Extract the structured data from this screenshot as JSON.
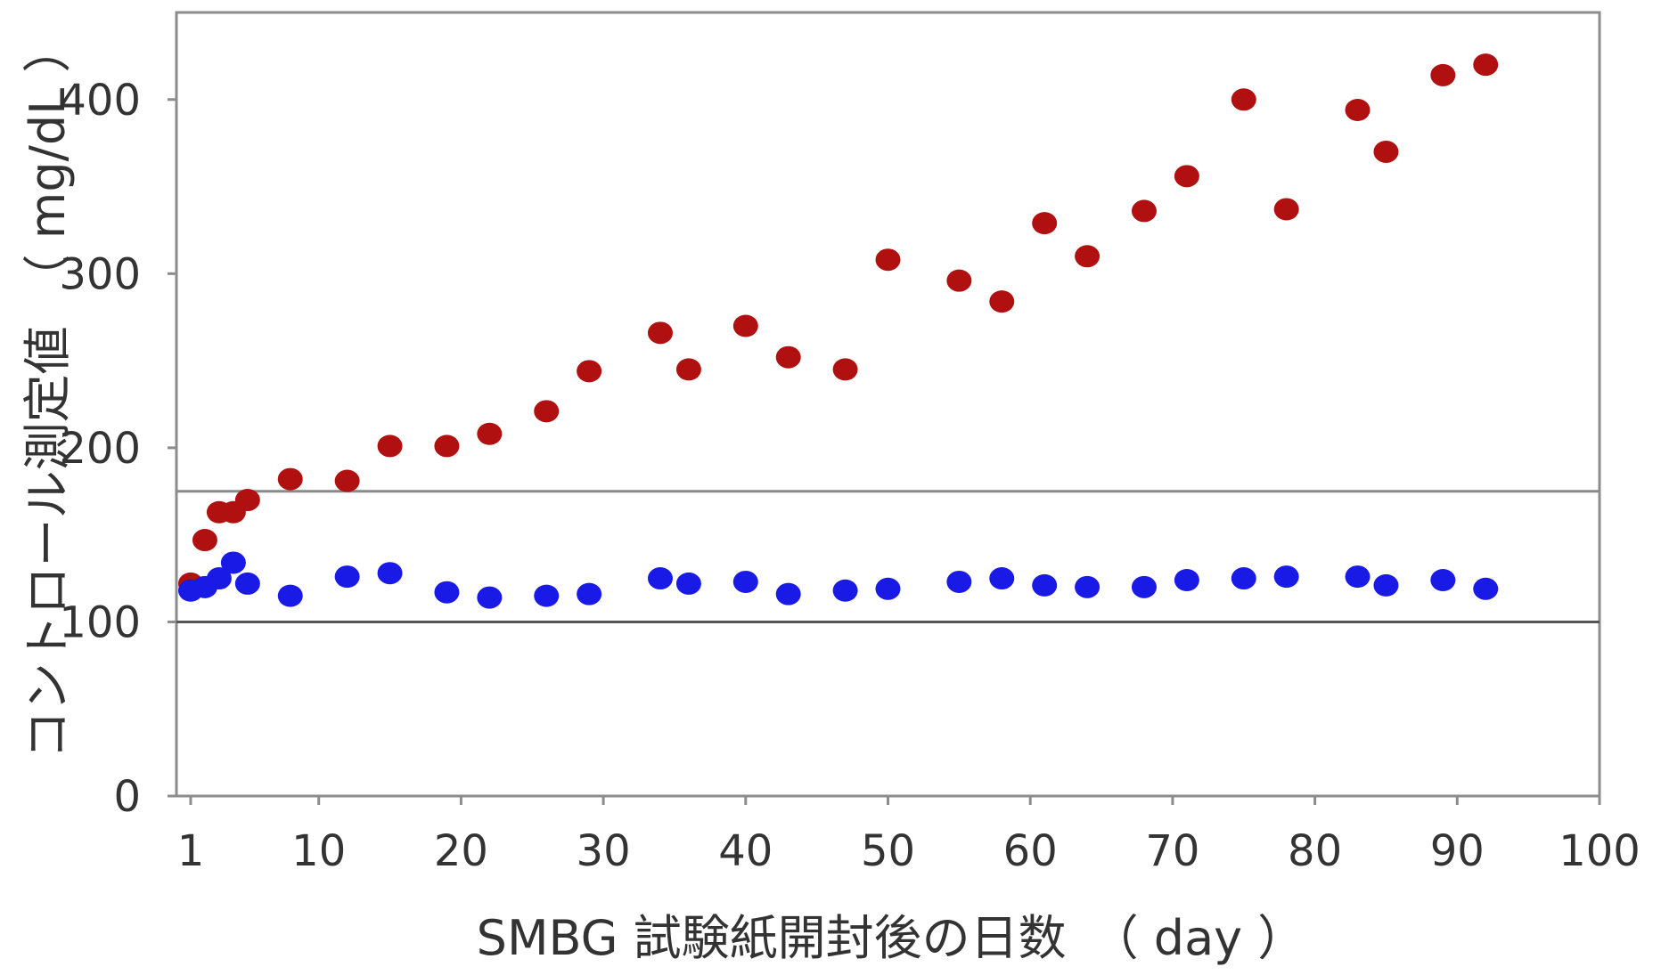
{
  "chart_data": {
    "type": "scatter",
    "xlabel": "SMBG 試験紙開封後の日数　（ day ）",
    "ylabel": "コントロール測定値　（ mg/dL ）",
    "xlim": [
      0,
      100
    ],
    "ylim": [
      0,
      450
    ],
    "x_ticks": [
      1,
      10,
      20,
      30,
      40,
      50,
      60,
      70,
      80,
      90,
      100
    ],
    "y_ticks": [
      0,
      100,
      200,
      300,
      400
    ],
    "reference_lines": [
      100,
      175
    ],
    "grid": false,
    "series": [
      {
        "color": "#b01010",
        "points": [
          [
            1,
            122
          ],
          [
            2,
            147
          ],
          [
            3,
            163
          ],
          [
            4,
            163
          ],
          [
            5,
            170
          ],
          [
            8,
            182
          ],
          [
            12,
            181
          ],
          [
            15,
            201
          ],
          [
            19,
            201
          ],
          [
            22,
            208
          ],
          [
            26,
            221
          ],
          [
            29,
            244
          ],
          [
            34,
            266
          ],
          [
            36,
            245
          ],
          [
            40,
            270
          ],
          [
            43,
            252
          ],
          [
            47,
            245
          ],
          [
            50,
            308
          ],
          [
            55,
            296
          ],
          [
            58,
            284
          ],
          [
            61,
            329
          ],
          [
            64,
            310
          ],
          [
            68,
            336
          ],
          [
            71,
            356
          ],
          [
            75,
            400
          ],
          [
            78,
            337
          ],
          [
            83,
            394
          ],
          [
            85,
            370
          ],
          [
            89,
            414
          ],
          [
            92,
            420
          ]
        ]
      },
      {
        "color": "#1a1ae6",
        "points": [
          [
            1,
            118
          ],
          [
            2,
            120
          ],
          [
            3,
            125
          ],
          [
            4,
            134
          ],
          [
            5,
            122
          ],
          [
            8,
            115
          ],
          [
            12,
            126
          ],
          [
            15,
            128
          ],
          [
            19,
            117
          ],
          [
            22,
            114
          ],
          [
            26,
            115
          ],
          [
            29,
            116
          ],
          [
            34,
            125
          ],
          [
            36,
            122
          ],
          [
            40,
            123
          ],
          [
            43,
            116
          ],
          [
            47,
            118
          ],
          [
            50,
            119
          ],
          [
            55,
            123
          ],
          [
            58,
            125
          ],
          [
            61,
            121
          ],
          [
            64,
            120
          ],
          [
            68,
            120
          ],
          [
            71,
            124
          ],
          [
            75,
            125
          ],
          [
            78,
            126
          ],
          [
            83,
            126
          ],
          [
            85,
            121
          ],
          [
            89,
            124
          ],
          [
            92,
            119
          ]
        ]
      }
    ]
  }
}
